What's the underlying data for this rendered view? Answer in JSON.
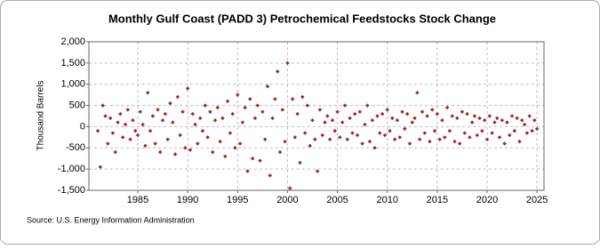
{
  "chart_data": {
    "type": "scatter",
    "title": "Monthly Gulf Coast (PADD 3) Petrochemical Feedstocks Stock Change",
    "y_label": "Thousand Barrels",
    "source": "Source: U.S. Energy Information Administration",
    "color": "#a52a2a",
    "grid": true,
    "xlim": [
      1980.1,
      2025.7
    ],
    "xticks": [
      1985,
      1990,
      1995,
      2000,
      2005,
      2010,
      2015,
      2020,
      2025
    ],
    "ylim": [
      -1500,
      2000
    ],
    "yticks": [
      {
        "value": -1500,
        "label": "-1,500"
      },
      {
        "value": -1000,
        "label": "-1,000"
      },
      -500,
      0,
      500,
      {
        "value": 1000,
        "label": "1,000"
      },
      {
        "value": 1500,
        "label": "1,500"
      },
      {
        "value": 2000,
        "label": "2,000"
      }
    ],
    "x": [
      1981,
      1981.25,
      1981.5,
      1981.75,
      1982,
      1982.25,
      1982.5,
      1982.75,
      1983,
      1983.25,
      1983.5,
      1983.75,
      1984,
      1984.25,
      1984.5,
      1984.75,
      1985,
      1985.25,
      1985.5,
      1985.75,
      1986,
      1986.25,
      1986.5,
      1986.75,
      1987,
      1987.25,
      1987.5,
      1987.75,
      1988,
      1988.25,
      1988.5,
      1988.75,
      1989,
      1989.25,
      1989.5,
      1989.75,
      1990,
      1990.25,
      1990.5,
      1990.75,
      1991,
      1991.25,
      1991.5,
      1991.75,
      1992,
      1992.25,
      1992.5,
      1992.75,
      1993,
      1993.25,
      1993.5,
      1993.75,
      1994,
      1994.25,
      1994.5,
      1994.75,
      1995,
      1995.25,
      1995.5,
      1995.75,
      1996,
      1996.25,
      1996.5,
      1996.75,
      1997,
      1997.25,
      1997.5,
      1997.75,
      1998,
      1998.25,
      1998.5,
      1998.75,
      1999,
      1999.25,
      1999.5,
      1999.75,
      2000,
      2000.25,
      2000.5,
      2000.75,
      2001,
      2001.25,
      2001.5,
      2001.75,
      2002,
      2002.25,
      2002.5,
      2002.75,
      2003,
      2003.25,
      2003.5,
      2003.75,
      2004,
      2004.25,
      2004.5,
      2004.75,
      2005,
      2005.25,
      2005.5,
      2005.75,
      2006,
      2006.25,
      2006.5,
      2006.75,
      2007,
      2007.25,
      2007.5,
      2007.75,
      2008,
      2008.25,
      2008.5,
      2008.75,
      2009,
      2009.25,
      2009.5,
      2009.75,
      2010,
      2010.25,
      2010.5,
      2010.75,
      2011,
      2011.25,
      2011.5,
      2011.75,
      2012,
      2012.25,
      2012.5,
      2012.75,
      2013,
      2013.25,
      2013.5,
      2013.75,
      2014,
      2014.25,
      2014.5,
      2014.75,
      2015,
      2015.25,
      2015.5,
      2015.75,
      2016,
      2016.25,
      2016.5,
      2016.75,
      2017,
      2017.25,
      2017.5,
      2017.75,
      2018,
      2018.25,
      2018.5,
      2018.75,
      2019,
      2019.25,
      2019.5,
      2019.75,
      2020,
      2020.25,
      2020.5,
      2020.75,
      2021,
      2021.25,
      2021.5,
      2021.75,
      2022,
      2022.25,
      2022.5,
      2022.75,
      2023,
      2023.25,
      2023.5,
      2023.75,
      2024,
      2024.25,
      2024.5,
      2024.75,
      2025
    ],
    "values": [
      -100,
      -950,
      500,
      250,
      -400,
      200,
      -150,
      -600,
      100,
      300,
      -250,
      50,
      400,
      -300,
      150,
      -100,
      -200,
      350,
      50,
      -450,
      800,
      -100,
      250,
      -400,
      400,
      -600,
      150,
      300,
      -300,
      550,
      100,
      -650,
      700,
      -200,
      350,
      -500,
      900,
      -550,
      300,
      50,
      -400,
      200,
      -100,
      500,
      -250,
      350,
      -600,
      150,
      450,
      -350,
      200,
      -700,
      600,
      -150,
      300,
      -500,
      750,
      -400,
      100,
      450,
      -1050,
      650,
      -750,
      200,
      500,
      -800,
      350,
      -300,
      950,
      -1150,
      200,
      650,
      1300,
      -600,
      400,
      -350,
      1500,
      -1450,
      650,
      -250,
      300,
      -850,
      700,
      -150,
      500,
      -450,
      150,
      -300,
      -1050,
      400,
      -200,
      100,
      250,
      -300,
      150,
      -100,
      350,
      -250,
      100,
      500,
      -300,
      200,
      -150,
      300,
      -200,
      350,
      -400,
      50,
      500,
      -350,
      150,
      -500,
      250,
      -150,
      300,
      -200,
      400,
      -100,
      200,
      -300,
      150,
      -250,
      350,
      -50,
      300,
      -400,
      100,
      200,
      800,
      -300,
      350,
      -150,
      250,
      -350,
      400,
      -100,
      300,
      -300,
      150,
      -250,
      450,
      -100,
      250,
      -350,
      200,
      -400,
      350,
      -150,
      300,
      -250,
      100,
      250,
      -200,
      200,
      -100,
      150,
      -300,
      250,
      -150,
      100,
      200,
      -250,
      150,
      -400,
      100,
      -200,
      250,
      -100,
      200,
      -350,
      150,
      50,
      -150,
      250,
      -100,
      150,
      -50
    ]
  }
}
